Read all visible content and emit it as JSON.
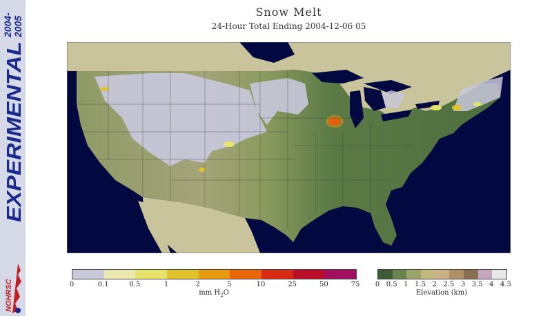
{
  "sidebar": {
    "year_line1": "2004-",
    "year_line2": "2005",
    "experimental": "EXPERIMENTAL",
    "logo_text": "NOHRSC"
  },
  "header": {
    "title": "Snow Melt",
    "subtitle": "24-Hour Total Ending 2004-12-06 05"
  },
  "snow_legend": {
    "unit_prefix": "mm H",
    "unit_sub": "2",
    "unit_suffix": "O",
    "ticks": [
      "0",
      "0.1",
      "0.5",
      "1",
      "2",
      "5",
      "10",
      "25",
      "50",
      "75"
    ],
    "colors": [
      "#c9c9d9",
      "#e9e8ae",
      "#e6e26c",
      "#e0c22c",
      "#e59a10",
      "#e8660a",
      "#d82a14",
      "#b80e2a",
      "#a1105e"
    ]
  },
  "elevation_legend": {
    "label": "Elevation (km)",
    "ticks": [
      "0",
      "0.5",
      "1",
      "1.5",
      "2",
      "2.5",
      "3",
      "3.5",
      "4",
      "4.5"
    ],
    "colors": [
      "#3d5a36",
      "#6a8450",
      "#9aa36a",
      "#c2b97f",
      "#c9b086",
      "#b09068",
      "#8a6e52",
      "#c6a6be",
      "#e8e8e8"
    ]
  },
  "map": {
    "ocean_color": "#020940",
    "land_outside_color": "#c9c49c",
    "snow_color": "#c8c8dc"
  }
}
